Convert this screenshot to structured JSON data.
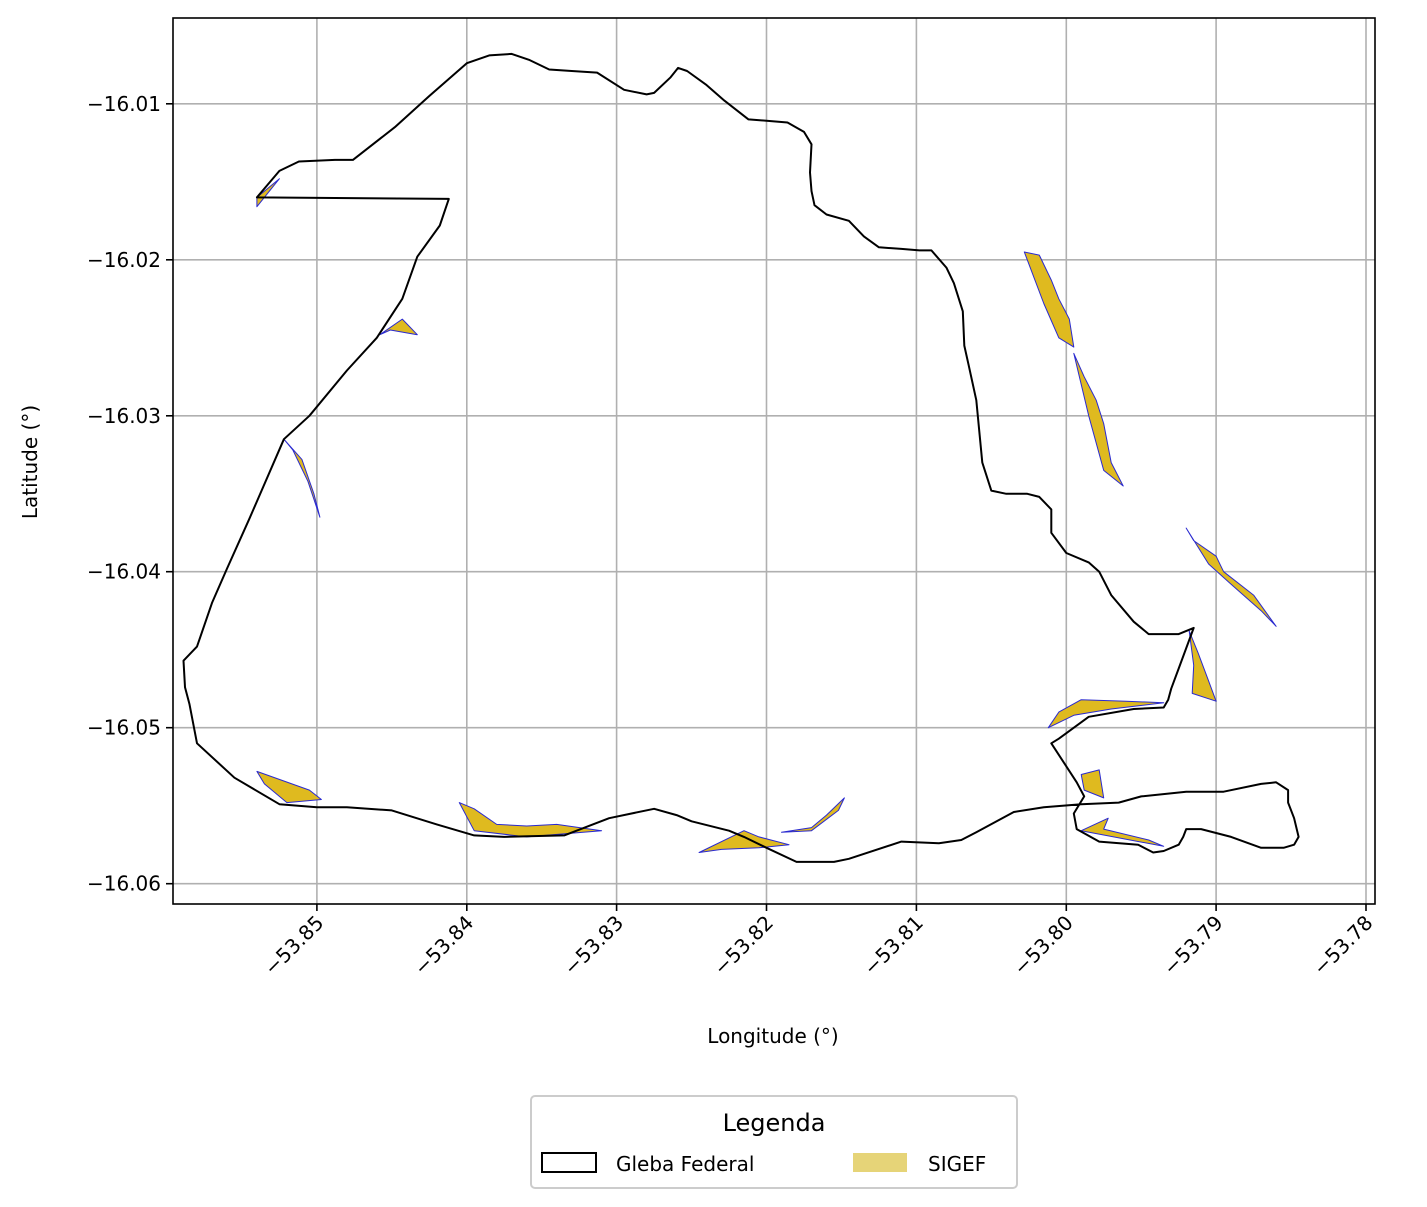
{
  "chart_data": {
    "type": "map",
    "xlabel": "Longitude (°)",
    "ylabel": "Latitude (°)",
    "xlim": [
      -53.8596,
      -53.7794
    ],
    "ylim": [
      -16.0613,
      -16.0045
    ],
    "x_ticks": [
      -53.85,
      -53.84,
      -53.83,
      -53.82,
      -53.81,
      -53.8,
      -53.79,
      -53.78
    ],
    "x_tick_labels": [
      "−53.85",
      "−53.84",
      "−53.83",
      "−53.82",
      "−53.81",
      "−53.80",
      "−53.79",
      "−53.78"
    ],
    "y_ticks": [
      -16.01,
      -16.02,
      -16.03,
      -16.04,
      -16.05,
      -16.06
    ],
    "y_tick_labels": [
      "−16.01",
      "−16.02",
      "−16.03",
      "−16.04",
      "−16.05",
      "−16.06"
    ],
    "grid": true,
    "legend": {
      "title": "Legenda",
      "placement": "bottom-center",
      "entries": [
        {
          "label": "Gleba Federal",
          "style": "outline",
          "color": "#000000"
        },
        {
          "label": "SIGEF",
          "style": "fill",
          "color": "#e6d478"
        }
      ]
    },
    "colors": {
      "gleba_outline": "#000000",
      "sigef_fill": "#dfba1f",
      "sigef_edge": "#2a2ad0",
      "grid": "#b0b0b0"
    },
    "gleba_boundary": [
      [
        -53.854,
        -16.016
      ],
      [
        -53.8525,
        -16.0143
      ],
      [
        -53.8512,
        -16.0137
      ],
      [
        -53.8488,
        -16.0136
      ],
      [
        -53.8476,
        -16.0136
      ],
      [
        -53.8448,
        -16.0115
      ],
      [
        -53.8425,
        -16.0095
      ],
      [
        -53.84,
        -16.0074
      ],
      [
        -53.8385,
        -16.0069
      ],
      [
        -53.837,
        -16.0068
      ],
      [
        -53.8358,
        -16.0072
      ],
      [
        -53.8345,
        -16.0078
      ],
      [
        -53.833,
        -16.0079
      ],
      [
        -53.8313,
        -16.008
      ],
      [
        -53.8295,
        -16.0091
      ],
      [
        -53.828,
        -16.0094
      ],
      [
        -53.8275,
        -16.0093
      ],
      [
        -53.8264,
        -16.0083
      ],
      [
        -53.8259,
        -16.0077
      ],
      [
        -53.8253,
        -16.0079
      ],
      [
        -53.824,
        -16.0088
      ],
      [
        -53.8228,
        -16.0098
      ],
      [
        -53.8212,
        -16.011
      ],
      [
        -53.8198,
        -16.0111
      ],
      [
        -53.8186,
        -16.0112
      ],
      [
        -53.8175,
        -16.0118
      ],
      [
        -53.817,
        -16.0126
      ],
      [
        -53.8171,
        -16.0144
      ],
      [
        -53.817,
        -16.0156
      ],
      [
        -53.8168,
        -16.0165
      ],
      [
        -53.816,
        -16.0171
      ],
      [
        -53.8145,
        -16.0175
      ],
      [
        -53.8135,
        -16.0185
      ],
      [
        -53.8125,
        -16.0192
      ],
      [
        -53.811,
        -16.0193
      ],
      [
        -53.8098,
        -16.0194
      ],
      [
        -53.809,
        -16.0194
      ],
      [
        -53.808,
        -16.0205
      ],
      [
        -53.8075,
        -16.0215
      ],
      [
        -53.8069,
        -16.0233
      ],
      [
        -53.8068,
        -16.0255
      ],
      [
        -53.8065,
        -16.0268
      ],
      [
        -53.806,
        -16.029
      ],
      [
        -53.8056,
        -16.033
      ],
      [
        -53.805,
        -16.0348
      ],
      [
        -53.804,
        -16.035
      ],
      [
        -53.8026,
        -16.035
      ],
      [
        -53.8018,
        -16.0352
      ],
      [
        -53.801,
        -16.036
      ],
      [
        -53.801,
        -16.0375
      ],
      [
        -53.8,
        -16.0388
      ],
      [
        -53.7985,
        -16.0394
      ],
      [
        -53.7978,
        -16.04
      ],
      [
        -53.797,
        -16.0415
      ],
      [
        -53.7955,
        -16.0432
      ],
      [
        -53.7945,
        -16.044
      ],
      [
        -53.7925,
        -16.044
      ],
      [
        -53.7915,
        -16.0436
      ],
      [
        -53.7925,
        -16.0462
      ],
      [
        -53.793,
        -16.0475
      ],
      [
        -53.7932,
        -16.0482
      ],
      [
        -53.7935,
        -16.0487
      ],
      [
        -53.7955,
        -16.0488
      ],
      [
        -53.7985,
        -16.0493
      ],
      [
        -53.8005,
        -16.0507
      ],
      [
        -53.801,
        -16.051
      ],
      [
        -53.7993,
        -16.0535
      ],
      [
        -53.7988,
        -16.0544
      ],
      [
        -53.7995,
        -16.0555
      ],
      [
        -53.7993,
        -16.0565
      ],
      [
        -53.7978,
        -16.0573
      ],
      [
        -53.7952,
        -16.0575
      ],
      [
        -53.7942,
        -16.058
      ],
      [
        -53.7935,
        -16.0579
      ],
      [
        -53.7925,
        -16.0575
      ],
      [
        -53.7922,
        -16.057
      ],
      [
        -53.792,
        -16.0565
      ],
      [
        -53.791,
        -16.0565
      ],
      [
        -53.789,
        -16.057
      ],
      [
        -53.787,
        -16.0577
      ],
      [
        -53.7855,
        -16.0577
      ],
      [
        -53.7848,
        -16.0575
      ],
      [
        -53.7845,
        -16.057
      ],
      [
        -53.7848,
        -16.0558
      ],
      [
        -53.7852,
        -16.0548
      ],
      [
        -53.7852,
        -16.054
      ],
      [
        -53.786,
        -16.0535
      ],
      [
        -53.787,
        -16.0536
      ],
      [
        -53.7895,
        -16.0541
      ],
      [
        -53.792,
        -16.0541
      ],
      [
        -53.795,
        -16.0544
      ],
      [
        -53.7965,
        -16.0548
      ],
      [
        -53.799,
        -16.0549
      ],
      [
        -53.8015,
        -16.0551
      ],
      [
        -53.8035,
        -16.0554
      ],
      [
        -53.806,
        -16.0567
      ],
      [
        -53.807,
        -16.0572
      ],
      [
        -53.8085,
        -16.0574
      ],
      [
        -53.811,
        -16.0573
      ],
      [
        -53.8145,
        -16.0584
      ],
      [
        -53.8155,
        -16.0586
      ],
      [
        -53.818,
        -16.0586
      ],
      [
        -53.82,
        -16.0577
      ],
      [
        -53.8215,
        -16.057
      ],
      [
        -53.8225,
        -16.0566
      ],
      [
        -53.825,
        -16.056
      ],
      [
        -53.826,
        -16.0556
      ],
      [
        -53.8275,
        -16.0552
      ],
      [
        -53.8305,
        -16.0558
      ],
      [
        -53.8335,
        -16.0569
      ],
      [
        -53.8375,
        -16.057
      ],
      [
        -53.8395,
        -16.0569
      ],
      [
        -53.842,
        -16.0562
      ],
      [
        -53.845,
        -16.0553
      ],
      [
        -53.848,
        -16.0551
      ],
      [
        -53.85,
        -16.0551
      ],
      [
        -53.8525,
        -16.0549
      ],
      [
        -53.8555,
        -16.0532
      ],
      [
        -53.858,
        -16.051
      ],
      [
        -53.8585,
        -16.0485
      ],
      [
        -53.8588,
        -16.0474
      ],
      [
        -53.8589,
        -16.0457
      ],
      [
        -53.858,
        -16.0448
      ],
      [
        -53.857,
        -16.042
      ],
      [
        -53.856,
        -16.0398
      ],
      [
        -53.8545,
        -16.0366
      ],
      [
        -53.8522,
        -16.0315
      ],
      [
        -53.8505,
        -16.03
      ],
      [
        -53.848,
        -16.0271
      ],
      [
        -53.846,
        -16.025
      ],
      [
        -53.8443,
        -16.0225
      ],
      [
        -53.8433,
        -16.0198
      ],
      [
        -53.8418,
        -16.0178
      ],
      [
        -53.8412,
        -16.0161
      ]
    ],
    "sigef_parcels": [
      [
        [
          -53.854,
          -16.016
        ],
        [
          -53.8525,
          -16.0148
        ],
        [
          -53.854,
          -16.0166
        ]
      ],
      [
        [
          -53.8458,
          -16.0248
        ],
        [
          -53.8443,
          -16.0238
        ],
        [
          -53.8433,
          -16.0248
        ],
        [
          -53.8451,
          -16.0245
        ]
      ],
      [
        [
          -53.8522,
          -16.0315
        ],
        [
          -53.851,
          -16.0328
        ],
        [
          -53.8502,
          -16.035
        ],
        [
          -53.8498,
          -16.0365
        ],
        [
          -53.8506,
          -16.0342
        ],
        [
          -53.8516,
          -16.0322
        ]
      ],
      [
        [
          -53.854,
          -16.0528
        ],
        [
          -53.8505,
          -16.054
        ],
        [
          -53.8497,
          -16.0546
        ],
        [
          -53.852,
          -16.0548
        ],
        [
          -53.8535,
          -16.0536
        ]
      ],
      [
        [
          -53.8405,
          -16.0548
        ],
        [
          -53.8395,
          -16.0552
        ],
        [
          -53.838,
          -16.0562
        ],
        [
          -53.836,
          -16.0563
        ],
        [
          -53.834,
          -16.0562
        ],
        [
          -53.831,
          -16.0566
        ],
        [
          -53.836,
          -16.057
        ],
        [
          -53.8395,
          -16.0566
        ]
      ],
      [
        [
          -53.8245,
          -16.058
        ],
        [
          -53.8215,
          -16.0566
        ],
        [
          -53.8205,
          -16.057
        ],
        [
          -53.8185,
          -16.0575
        ],
        [
          -53.8205,
          -16.0577
        ],
        [
          -53.823,
          -16.0578
        ]
      ],
      [
        [
          -53.819,
          -16.0567
        ],
        [
          -53.817,
          -16.0564
        ],
        [
          -53.816,
          -16.0556
        ],
        [
          -53.8148,
          -16.0545
        ],
        [
          -53.8152,
          -16.0553
        ],
        [
          -53.817,
          -16.0566
        ]
      ],
      [
        [
          -53.8028,
          -16.0195
        ],
        [
          -53.8018,
          -16.0197
        ],
        [
          -53.801,
          -16.0213
        ],
        [
          -53.8005,
          -16.0225
        ],
        [
          -53.7998,
          -16.0238
        ],
        [
          -53.7995,
          -16.0256
        ],
        [
          -53.8005,
          -16.025
        ],
        [
          -53.8015,
          -16.0228
        ]
      ],
      [
        [
          -53.7995,
          -16.026
        ],
        [
          -53.7988,
          -16.0275
        ],
        [
          -53.798,
          -16.029
        ],
        [
          -53.7975,
          -16.0305
        ],
        [
          -53.797,
          -16.033
        ],
        [
          -53.7962,
          -16.0345
        ],
        [
          -53.7975,
          -16.0335
        ],
        [
          -53.7985,
          -16.03
        ]
      ],
      [
        [
          -53.792,
          -16.0372
        ],
        [
          -53.7915,
          -16.038
        ],
        [
          -53.79,
          -16.039
        ],
        [
          -53.7895,
          -16.04
        ],
        [
          -53.7875,
          -16.0415
        ],
        [
          -53.786,
          -16.0435
        ],
        [
          -53.787,
          -16.0425
        ],
        [
          -53.789,
          -16.0408
        ],
        [
          -53.7905,
          -16.0395
        ]
      ],
      [
        [
          -53.7918,
          -16.0438
        ],
        [
          -53.7912,
          -16.0452
        ],
        [
          -53.7905,
          -16.047
        ],
        [
          -53.79,
          -16.0483
        ],
        [
          -53.7916,
          -16.0478
        ],
        [
          -53.7915,
          -16.046
        ]
      ],
      [
        [
          -53.7935,
          -16.0484
        ],
        [
          -53.796,
          -16.0483
        ],
        [
          -53.799,
          -16.0482
        ],
        [
          -53.8005,
          -16.049
        ],
        [
          -53.8012,
          -16.05
        ],
        [
          -53.7995,
          -16.0492
        ],
        [
          -53.797,
          -16.0488
        ]
      ],
      [
        [
          -53.799,
          -16.053
        ],
        [
          -53.7978,
          -16.0527
        ],
        [
          -53.7975,
          -16.0545
        ],
        [
          -53.7988,
          -16.054
        ]
      ],
      [
        [
          -53.7972,
          -16.0558
        ],
        [
          -53.799,
          -16.0566
        ],
        [
          -53.7935,
          -16.0576
        ],
        [
          -53.7945,
          -16.0572
        ],
        [
          -53.7975,
          -16.0565
        ]
      ]
    ]
  }
}
